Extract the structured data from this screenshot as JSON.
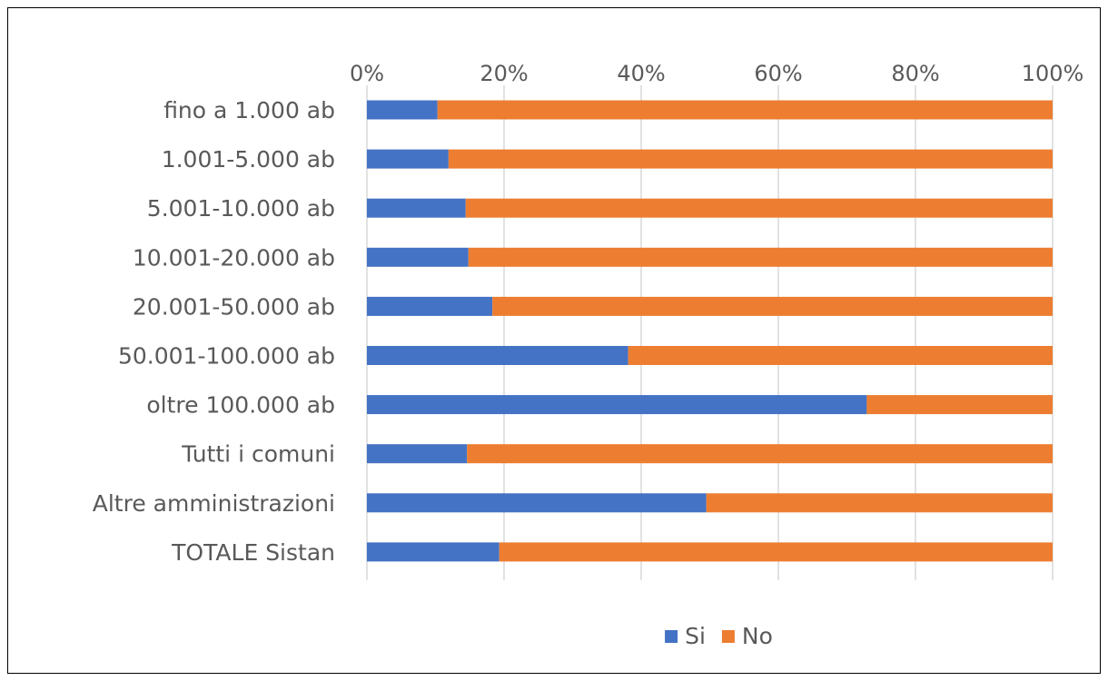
{
  "chart_data": {
    "type": "bar",
    "orientation": "horizontal",
    "stacked": "percent",
    "title": "",
    "xlabel": "",
    "ylabel": "",
    "xlim": [
      0,
      100
    ],
    "x_ticks": [
      "0%",
      "20%",
      "40%",
      "60%",
      "80%",
      "100%"
    ],
    "x_axis_position": "top",
    "grid": true,
    "legend_position": "bottom",
    "categories": [
      "fino a 1.000 ab",
      "1.001-5.000 ab",
      "5.001-10.000 ab",
      "10.001-20.000 ab",
      "20.001-50.000 ab",
      "50.001-100.000 ab",
      "oltre 100.000 ab",
      "Tutti i comuni",
      "Altre amministrazioni",
      "TOTALE Sistan"
    ],
    "series": [
      {
        "name": "Si",
        "color": "#4472c4",
        "values": [
          10.3,
          11.9,
          14.4,
          14.8,
          18.3,
          38.1,
          72.9,
          14.6,
          49.5,
          19.3
        ]
      },
      {
        "name": "No",
        "color": "#ed7d31",
        "values": [
          89.7,
          88.1,
          85.6,
          85.2,
          81.7,
          61.9,
          27.1,
          85.4,
          50.5,
          80.7
        ]
      }
    ]
  }
}
